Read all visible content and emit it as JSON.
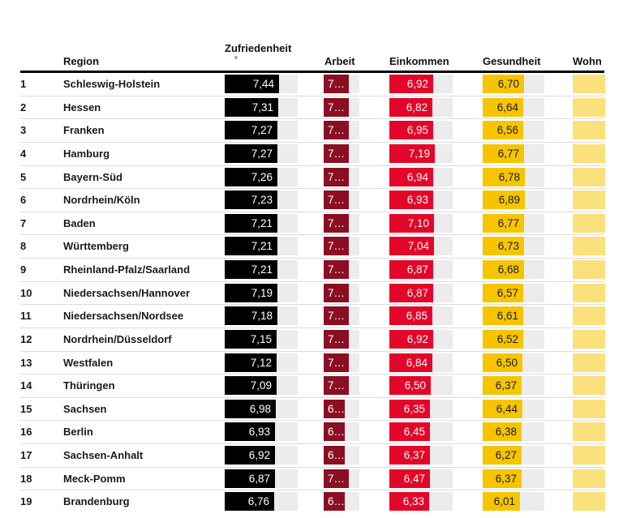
{
  "table": {
    "columns": {
      "region": "Region",
      "zufriedenheit": "Zufriedenheit",
      "arbeit": "Arbeit",
      "einkommen": "Einkommen",
      "gesundheit": "Gesundheit",
      "wohnen": "Wohn"
    },
    "sort": {
      "column": "Zufriedenheit",
      "direction": "desc",
      "icon": "▼"
    },
    "rows": [
      {
        "rank": "1",
        "region": "Schleswig-Holstein",
        "zufriedenheit": "7,44",
        "arbeit": "7…",
        "einkommen": "6,92",
        "gesundheit": "6,70"
      },
      {
        "rank": "2",
        "region": "Hessen",
        "zufriedenheit": "7,31",
        "arbeit": "7…",
        "einkommen": "6,82",
        "gesundheit": "6,64"
      },
      {
        "rank": "3",
        "region": "Franken",
        "zufriedenheit": "7,27",
        "arbeit": "7…",
        "einkommen": "6,95",
        "gesundheit": "6,56"
      },
      {
        "rank": "4",
        "region": "Hamburg",
        "zufriedenheit": "7,27",
        "arbeit": "7…",
        "einkommen": "7,19",
        "gesundheit": "6,77"
      },
      {
        "rank": "5",
        "region": "Bayern-Süd",
        "zufriedenheit": "7,26",
        "arbeit": "7…",
        "einkommen": "6,94",
        "gesundheit": "6,78"
      },
      {
        "rank": "6",
        "region": "Nordrhein/Köln",
        "zufriedenheit": "7,23",
        "arbeit": "7…",
        "einkommen": "6,93",
        "gesundheit": "6,89"
      },
      {
        "rank": "7",
        "region": "Baden",
        "zufriedenheit": "7,21",
        "arbeit": "7…",
        "einkommen": "7,10",
        "gesundheit": "6,77"
      },
      {
        "rank": "8",
        "region": "Württemberg",
        "zufriedenheit": "7,21",
        "arbeit": "7…",
        "einkommen": "7,04",
        "gesundheit": "6,73"
      },
      {
        "rank": "9",
        "region": "Rheinland-Pfalz/Saarland",
        "zufriedenheit": "7,21",
        "arbeit": "7…",
        "einkommen": "6,87",
        "gesundheit": "6,68"
      },
      {
        "rank": "10",
        "region": "Niedersachsen/Hannover",
        "zufriedenheit": "7,19",
        "arbeit": "7…",
        "einkommen": "6,87",
        "gesundheit": "6,57"
      },
      {
        "rank": "11",
        "region": "Niedersachsen/Nordsee",
        "zufriedenheit": "7,18",
        "arbeit": "7…",
        "einkommen": "6,85",
        "gesundheit": "6,61"
      },
      {
        "rank": "12",
        "region": "Nordrhein/Düsseldorf",
        "zufriedenheit": "7,15",
        "arbeit": "7…",
        "einkommen": "6,92",
        "gesundheit": "6,52"
      },
      {
        "rank": "13",
        "region": "Westfalen",
        "zufriedenheit": "7,12",
        "arbeit": "7…",
        "einkommen": "6,84",
        "gesundheit": "6,50"
      },
      {
        "rank": "14",
        "region": "Thüringen",
        "zufriedenheit": "7,09",
        "arbeit": "7…",
        "einkommen": "6,50",
        "gesundheit": "6,37"
      },
      {
        "rank": "15",
        "region": "Sachsen",
        "zufriedenheit": "6,98",
        "arbeit": "6…",
        "einkommen": "6,35",
        "gesundheit": "6,44"
      },
      {
        "rank": "16",
        "region": "Berlin",
        "zufriedenheit": "6,93",
        "arbeit": "6…",
        "einkommen": "6,45",
        "gesundheit": "6,38"
      },
      {
        "rank": "17",
        "region": "Sachsen-Anhalt",
        "zufriedenheit": "6,92",
        "arbeit": "6…",
        "einkommen": "6,37",
        "gesundheit": "6,27"
      },
      {
        "rank": "18",
        "region": "Meck-Pomm",
        "zufriedenheit": "6,87",
        "arbeit": "7…",
        "einkommen": "6,47",
        "gesundheit": "6,37"
      },
      {
        "rank": "19",
        "region": "Brandenburg",
        "zufriedenheit": "6,76",
        "arbeit": "6…",
        "einkommen": "6,33",
        "gesundheit": "6,01"
      }
    ]
  },
  "colors": {
    "zufriedenheit_badge": "#000000",
    "arbeit_badge": "#8b0e22",
    "einkommen_badge": "#e40629",
    "gesundheit_badge": "#f6c500",
    "wohnen_badge": "#fae17c",
    "track_gray": "#ececec",
    "text_on_dark": "#ffffff",
    "text_on_gold": "#1a1a1a"
  }
}
